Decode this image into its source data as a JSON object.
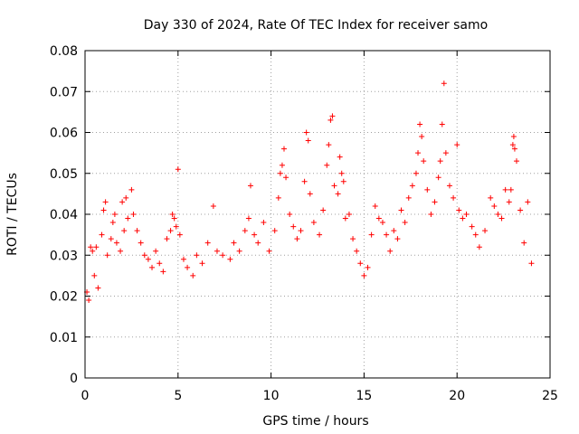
{
  "chart_data": {
    "type": "scatter",
    "title": "Day 330 of 2024, Rate Of TEC Index for receiver samo",
    "xlabel": "GPS time / hours",
    "ylabel": "ROTI / TECUs",
    "xlim": [
      0,
      25
    ],
    "ylim": [
      0,
      0.08
    ],
    "xticks": [
      "0",
      "5",
      "10",
      "15",
      "20",
      "25"
    ],
    "yticks": [
      "0",
      "0.01",
      "0.02",
      "0.03",
      "0.04",
      "0.05",
      "0.06",
      "0.07",
      "0.08"
    ],
    "grid": true,
    "marker": "plus",
    "color": "#ff0000",
    "series": [
      {
        "points": [
          [
            0.1,
            0.021
          ],
          [
            0.2,
            0.019
          ],
          [
            0.3,
            0.032
          ],
          [
            0.4,
            0.031
          ],
          [
            0.5,
            0.025
          ],
          [
            0.6,
            0.032
          ],
          [
            0.7,
            0.022
          ],
          [
            0.9,
            0.035
          ],
          [
            1.0,
            0.041
          ],
          [
            1.1,
            0.043
          ],
          [
            1.2,
            0.03
          ],
          [
            1.4,
            0.034
          ],
          [
            1.5,
            0.038
          ],
          [
            1.6,
            0.04
          ],
          [
            1.7,
            0.033
          ],
          [
            1.9,
            0.031
          ],
          [
            2.0,
            0.043
          ],
          [
            2.1,
            0.036
          ],
          [
            2.2,
            0.044
          ],
          [
            2.3,
            0.039
          ],
          [
            2.5,
            0.046
          ],
          [
            2.6,
            0.04
          ],
          [
            2.8,
            0.036
          ],
          [
            3.0,
            0.033
          ],
          [
            3.2,
            0.03
          ],
          [
            3.4,
            0.029
          ],
          [
            3.6,
            0.027
          ],
          [
            3.8,
            0.031
          ],
          [
            4.0,
            0.028
          ],
          [
            4.2,
            0.026
          ],
          [
            4.4,
            0.034
          ],
          [
            4.6,
            0.036
          ],
          [
            4.7,
            0.04
          ],
          [
            4.8,
            0.039
          ],
          [
            4.9,
            0.037
          ],
          [
            5.0,
            0.051
          ],
          [
            5.1,
            0.035
          ],
          [
            5.3,
            0.029
          ],
          [
            5.5,
            0.027
          ],
          [
            5.8,
            0.025
          ],
          [
            6.0,
            0.03
          ],
          [
            6.3,
            0.028
          ],
          [
            6.6,
            0.033
          ],
          [
            6.9,
            0.042
          ],
          [
            7.1,
            0.031
          ],
          [
            7.4,
            0.03
          ],
          [
            7.8,
            0.029
          ],
          [
            8.0,
            0.033
          ],
          [
            8.3,
            0.031
          ],
          [
            8.6,
            0.036
          ],
          [
            8.8,
            0.039
          ],
          [
            8.9,
            0.047
          ],
          [
            9.1,
            0.035
          ],
          [
            9.3,
            0.033
          ],
          [
            9.6,
            0.038
          ],
          [
            9.9,
            0.031
          ],
          [
            10.2,
            0.036
          ],
          [
            10.4,
            0.044
          ],
          [
            10.5,
            0.05
          ],
          [
            10.6,
            0.052
          ],
          [
            10.7,
            0.056
          ],
          [
            10.8,
            0.049
          ],
          [
            11.0,
            0.04
          ],
          [
            11.2,
            0.037
          ],
          [
            11.4,
            0.034
          ],
          [
            11.6,
            0.036
          ],
          [
            11.8,
            0.048
          ],
          [
            11.9,
            0.06
          ],
          [
            12.0,
            0.058
          ],
          [
            12.1,
            0.045
          ],
          [
            12.3,
            0.038
          ],
          [
            12.6,
            0.035
          ],
          [
            12.8,
            0.041
          ],
          [
            13.0,
            0.052
          ],
          [
            13.1,
            0.057
          ],
          [
            13.2,
            0.063
          ],
          [
            13.3,
            0.064
          ],
          [
            13.4,
            0.047
          ],
          [
            13.6,
            0.045
          ],
          [
            13.7,
            0.054
          ],
          [
            13.8,
            0.05
          ],
          [
            13.9,
            0.048
          ],
          [
            14.0,
            0.039
          ],
          [
            14.2,
            0.04
          ],
          [
            14.4,
            0.034
          ],
          [
            14.6,
            0.031
          ],
          [
            14.8,
            0.028
          ],
          [
            15.0,
            0.025
          ],
          [
            15.2,
            0.027
          ],
          [
            15.4,
            0.035
          ],
          [
            15.6,
            0.042
          ],
          [
            15.8,
            0.039
          ],
          [
            16.0,
            0.038
          ],
          [
            16.2,
            0.035
          ],
          [
            16.4,
            0.031
          ],
          [
            16.6,
            0.036
          ],
          [
            16.8,
            0.034
          ],
          [
            17.0,
            0.041
          ],
          [
            17.2,
            0.038
          ],
          [
            17.4,
            0.044
          ],
          [
            17.6,
            0.047
          ],
          [
            17.8,
            0.05
          ],
          [
            17.9,
            0.055
          ],
          [
            18.0,
            0.062
          ],
          [
            18.1,
            0.059
          ],
          [
            18.2,
            0.053
          ],
          [
            18.4,
            0.046
          ],
          [
            18.6,
            0.04
          ],
          [
            18.8,
            0.043
          ],
          [
            19.0,
            0.049
          ],
          [
            19.1,
            0.053
          ],
          [
            19.2,
            0.062
          ],
          [
            19.3,
            0.072
          ],
          [
            19.4,
            0.055
          ],
          [
            19.6,
            0.047
          ],
          [
            19.8,
            0.044
          ],
          [
            20.0,
            0.057
          ],
          [
            20.1,
            0.041
          ],
          [
            20.3,
            0.039
          ],
          [
            20.5,
            0.04
          ],
          [
            20.8,
            0.037
          ],
          [
            21.0,
            0.035
          ],
          [
            21.2,
            0.032
          ],
          [
            21.5,
            0.036
          ],
          [
            21.8,
            0.044
          ],
          [
            22.0,
            0.042
          ],
          [
            22.2,
            0.04
          ],
          [
            22.4,
            0.039
          ],
          [
            22.6,
            0.046
          ],
          [
            22.8,
            0.043
          ],
          [
            22.9,
            0.046
          ],
          [
            23.0,
            0.057
          ],
          [
            23.05,
            0.059
          ],
          [
            23.1,
            0.056
          ],
          [
            23.2,
            0.053
          ],
          [
            23.4,
            0.041
          ],
          [
            23.6,
            0.033
          ],
          [
            23.8,
            0.043
          ],
          [
            24.0,
            0.028
          ]
        ]
      }
    ]
  }
}
